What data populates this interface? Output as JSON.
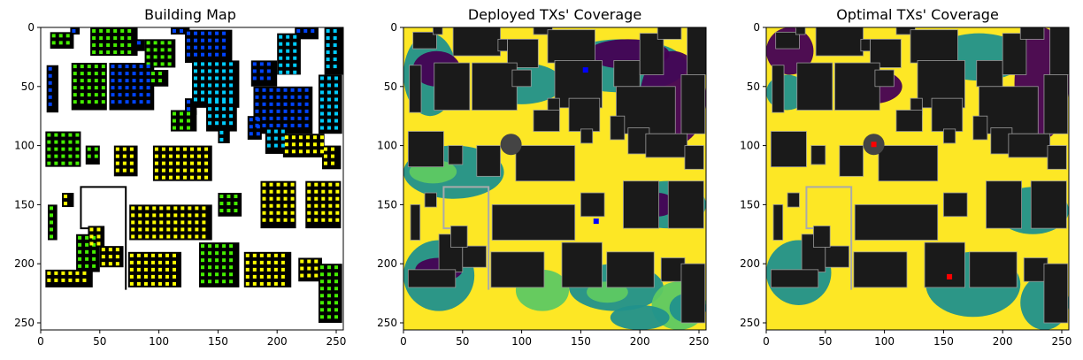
{
  "figure": {
    "panels": [
      {
        "title": "Building Map"
      },
      {
        "title": "Deployed TXs' Coverage"
      },
      {
        "title": "Optimal TXs' Coverage"
      }
    ]
  },
  "colors": {
    "building": "#1a1a1a",
    "background_map": "#ffffff",
    "coverage_high": "#fde725",
    "coverage_mid_high": "#5ec962",
    "coverage_mid": "#21918c",
    "coverage_low": "#440154",
    "tx_deployed": "#0000ff",
    "tx_optimal": "#ff0000",
    "tx_dot_green": "#44ee00",
    "tx_dot_blue": "#0044ff",
    "tx_dot_cyan": "#00ccff",
    "tx_dot_yellow": "#ffff00"
  },
  "chart_data": [
    {
      "type": "heatmap",
      "title": "Building Map",
      "xlim": [
        0,
        256
      ],
      "ylim": [
        256,
        0
      ],
      "xticks": [
        0,
        50,
        100,
        150,
        200,
        250
      ],
      "yticks": [
        0,
        50,
        100,
        150,
        200,
        250
      ],
      "xtick_labels": [
        "0",
        "50",
        "100",
        "150",
        "200",
        "250"
      ],
      "ytick_labels": [
        "0",
        "50",
        "100",
        "150",
        "200",
        "250"
      ]
    },
    {
      "type": "heatmap",
      "title": "Deployed TXs' Coverage",
      "xlim": [
        0,
        256
      ],
      "ylim": [
        256,
        0
      ],
      "xticks": [
        0,
        50,
        100,
        150,
        200,
        250
      ],
      "yticks": [
        0,
        50,
        100,
        150,
        200,
        250
      ],
      "xtick_labels": [
        "0",
        "50",
        "100",
        "150",
        "200",
        "250"
      ],
      "ytick_labels": [
        "0",
        "50",
        "100",
        "150",
        "200",
        "250"
      ],
      "transmitters": [
        {
          "x": 154,
          "y": 36
        },
        {
          "x": 163,
          "y": 164
        }
      ]
    },
    {
      "type": "heatmap",
      "title": "Optimal TXs' Coverage",
      "xlim": [
        0,
        256
      ],
      "ylim": [
        256,
        0
      ],
      "xticks": [
        0,
        50,
        100,
        150,
        200,
        250
      ],
      "yticks": [
        0,
        50,
        100,
        150,
        200,
        250
      ],
      "xtick_labels": [
        "0",
        "50",
        "100",
        "150",
        "200",
        "250"
      ],
      "ytick_labels": [
        "0",
        "50",
        "100",
        "150",
        "200",
        "250"
      ],
      "transmitters": [
        {
          "x": 91,
          "y": 99
        },
        {
          "x": 155,
          "y": 211
        }
      ]
    }
  ]
}
